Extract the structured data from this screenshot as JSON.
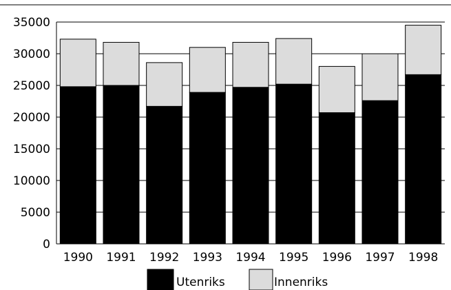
{
  "chart_data": {
    "type": "bar",
    "stacked": true,
    "categories": [
      "1990",
      "1991",
      "1992",
      "1993",
      "1994",
      "1995",
      "1996",
      "1997",
      "1998"
    ],
    "series": [
      {
        "name": "Utenriks",
        "color": "#000000",
        "values": [
          24800,
          25000,
          21700,
          23900,
          24700,
          25200,
          20700,
          22600,
          26700
        ]
      },
      {
        "name": "Innenriks",
        "color": "#dcdcdc",
        "values": [
          7500,
          6800,
          6900,
          7100,
          7100,
          7200,
          7300,
          7400,
          7800
        ]
      }
    ],
    "ylim": [
      0,
      35000
    ],
    "yticks": [
      0,
      5000,
      10000,
      15000,
      20000,
      25000,
      30000,
      35000
    ],
    "grid": true,
    "legend_position": "bottom"
  }
}
